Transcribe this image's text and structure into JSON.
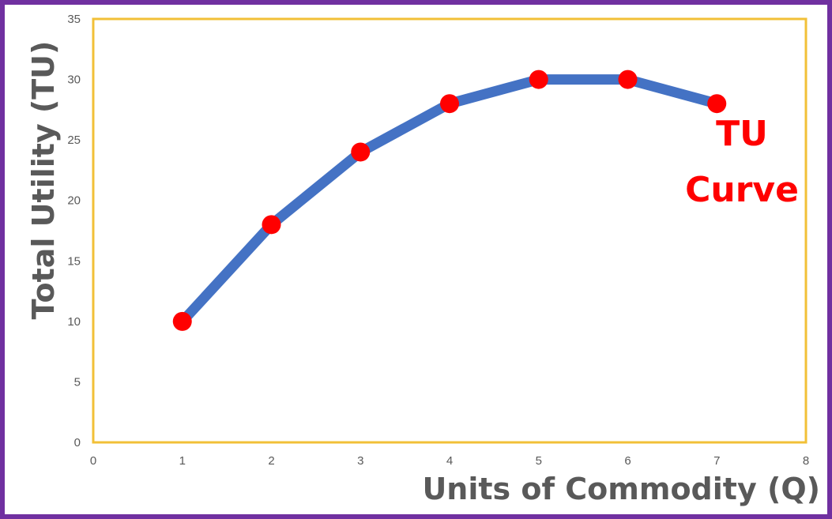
{
  "chart_data": {
    "type": "line",
    "title": "",
    "xlabel": "Units of Commodity (Q)",
    "ylabel": "Total Utility (TU)",
    "xlim": [
      0,
      8
    ],
    "ylim": [
      0,
      35
    ],
    "x_ticks": [
      "0",
      "1",
      "2",
      "3",
      "4",
      "5",
      "6",
      "7",
      "8"
    ],
    "y_ticks": [
      "0",
      "5",
      "10",
      "15",
      "20",
      "25",
      "30",
      "35"
    ],
    "grid": false,
    "series": [
      {
        "x": [
          1,
          2,
          3,
          4,
          5,
          6,
          7
        ],
        "values": [
          10,
          18,
          24,
          28,
          30,
          30,
          28
        ]
      }
    ],
    "annotations": [
      "TU",
      "Curve"
    ],
    "colors": {
      "line": "#4472c4",
      "markers": "#ff0000",
      "plot_border": "#f2c037",
      "frame": "#7030a0",
      "annotation": "#ff0000",
      "axis_text": "#595959"
    }
  }
}
